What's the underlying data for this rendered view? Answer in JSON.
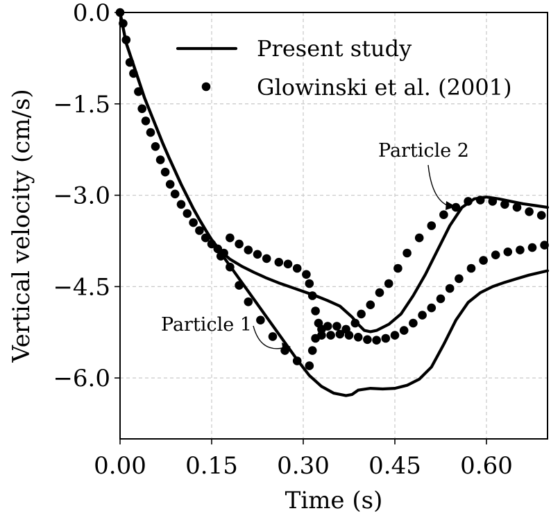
{
  "chart_data": {
    "type": "scatter",
    "xlabel": "Time (s)",
    "ylabel": "Vertical velocity (cm/s)",
    "xlim": [
      0.0,
      0.7
    ],
    "ylim": [
      -7.0,
      0.0
    ],
    "xticks": [
      0.0,
      0.15,
      0.3,
      0.45,
      0.6
    ],
    "xtick_labels": [
      "0.00",
      "0.15",
      "0.30",
      "0.45",
      "0.60"
    ],
    "yticks": [
      0.0,
      -1.5,
      -3.0,
      -4.5,
      -6.0
    ],
    "ytick_labels": [
      "0.0",
      "−1.5",
      "−3.0",
      "−4.5",
      "−6.0"
    ],
    "grid": true,
    "legend_position": "top-right",
    "legend": [
      {
        "label": "Present study",
        "marker": "line"
      },
      {
        "label": "Glowinski et al. (2001)",
        "marker": "dot"
      }
    ],
    "annotations": [
      {
        "text": "Particle 1",
        "x": 0.285,
        "y": -5.55
      },
      {
        "text": "Particle 2",
        "x": 0.555,
        "y": -3.1
      }
    ],
    "series": [
      {
        "legend": "Present study",
        "style": "line",
        "points": [
          [
            0.0,
            0.0
          ],
          [
            0.005,
            -0.25
          ],
          [
            0.01,
            -0.5
          ],
          [
            0.02,
            -0.8
          ],
          [
            0.03,
            -1.1
          ],
          [
            0.04,
            -1.4
          ],
          [
            0.05,
            -1.65
          ],
          [
            0.06,
            -1.9
          ],
          [
            0.07,
            -2.15
          ],
          [
            0.08,
            -2.38
          ],
          [
            0.09,
            -2.6
          ],
          [
            0.1,
            -2.82
          ],
          [
            0.11,
            -3.02
          ],
          [
            0.12,
            -3.22
          ],
          [
            0.13,
            -3.4
          ],
          [
            0.14,
            -3.57
          ],
          [
            0.15,
            -3.73
          ],
          [
            0.165,
            -3.92
          ],
          [
            0.18,
            -4.05
          ],
          [
            0.2,
            -4.17
          ],
          [
            0.22,
            -4.27
          ],
          [
            0.24,
            -4.36
          ],
          [
            0.26,
            -4.44
          ],
          [
            0.28,
            -4.51
          ],
          [
            0.3,
            -4.58
          ],
          [
            0.32,
            -4.65
          ],
          [
            0.34,
            -4.73
          ],
          [
            0.36,
            -4.82
          ],
          [
            0.38,
            -5.0
          ],
          [
            0.39,
            -5.12
          ],
          [
            0.4,
            -5.22
          ],
          [
            0.41,
            -5.24
          ],
          [
            0.42,
            -5.22
          ],
          [
            0.44,
            -5.12
          ],
          [
            0.46,
            -4.95
          ],
          [
            0.48,
            -4.65
          ],
          [
            0.5,
            -4.3
          ],
          [
            0.52,
            -3.9
          ],
          [
            0.54,
            -3.5
          ],
          [
            0.56,
            -3.2
          ],
          [
            0.58,
            -3.06
          ],
          [
            0.6,
            -3.03
          ],
          [
            0.62,
            -3.06
          ],
          [
            0.64,
            -3.1
          ],
          [
            0.66,
            -3.14
          ],
          [
            0.68,
            -3.17
          ],
          [
            0.7,
            -3.2
          ]
        ]
      },
      {
        "legend": "Present study",
        "style": "line",
        "points": [
          [
            0.0,
            0.0
          ],
          [
            0.005,
            -0.25
          ],
          [
            0.01,
            -0.5
          ],
          [
            0.02,
            -0.8
          ],
          [
            0.03,
            -1.1
          ],
          [
            0.04,
            -1.4
          ],
          [
            0.05,
            -1.65
          ],
          [
            0.06,
            -1.9
          ],
          [
            0.07,
            -2.15
          ],
          [
            0.08,
            -2.38
          ],
          [
            0.09,
            -2.6
          ],
          [
            0.1,
            -2.82
          ],
          [
            0.11,
            -3.02
          ],
          [
            0.12,
            -3.22
          ],
          [
            0.13,
            -3.4
          ],
          [
            0.14,
            -3.57
          ],
          [
            0.15,
            -3.73
          ],
          [
            0.17,
            -4.02
          ],
          [
            0.19,
            -4.3
          ],
          [
            0.21,
            -4.58
          ],
          [
            0.23,
            -4.86
          ],
          [
            0.25,
            -5.14
          ],
          [
            0.27,
            -5.42
          ],
          [
            0.29,
            -5.7
          ],
          [
            0.31,
            -5.96
          ],
          [
            0.33,
            -6.14
          ],
          [
            0.35,
            -6.25
          ],
          [
            0.37,
            -6.29
          ],
          [
            0.38,
            -6.27
          ],
          [
            0.39,
            -6.2
          ],
          [
            0.41,
            -6.17
          ],
          [
            0.43,
            -6.18
          ],
          [
            0.45,
            -6.17
          ],
          [
            0.47,
            -6.12
          ],
          [
            0.49,
            -6.02
          ],
          [
            0.51,
            -5.82
          ],
          [
            0.53,
            -5.45
          ],
          [
            0.55,
            -5.05
          ],
          [
            0.57,
            -4.76
          ],
          [
            0.59,
            -4.6
          ],
          [
            0.61,
            -4.5
          ],
          [
            0.63,
            -4.43
          ],
          [
            0.65,
            -4.37
          ],
          [
            0.67,
            -4.31
          ],
          [
            0.7,
            -4.24
          ]
        ]
      },
      {
        "legend": "Glowinski et al. (2001)",
        "style": "dots",
        "points": [
          [
            0.0,
            0.0
          ],
          [
            0.005,
            -0.18
          ],
          [
            0.01,
            -0.45
          ],
          [
            0.016,
            -0.82
          ],
          [
            0.022,
            -1.0
          ],
          [
            0.03,
            -1.3
          ],
          [
            0.036,
            -1.58
          ],
          [
            0.042,
            -1.78
          ],
          [
            0.05,
            -1.97
          ],
          [
            0.058,
            -2.2
          ],
          [
            0.066,
            -2.42
          ],
          [
            0.074,
            -2.62
          ],
          [
            0.082,
            -2.82
          ],
          [
            0.09,
            -2.98
          ],
          [
            0.1,
            -3.15
          ],
          [
            0.11,
            -3.3
          ],
          [
            0.12,
            -3.45
          ],
          [
            0.13,
            -3.58
          ],
          [
            0.14,
            -3.7
          ],
          [
            0.15,
            -3.8
          ],
          [
            0.16,
            -3.88
          ],
          [
            0.17,
            -3.95
          ],
          [
            0.18,
            -3.7
          ],
          [
            0.195,
            -3.8
          ],
          [
            0.21,
            -3.9
          ],
          [
            0.225,
            -3.97
          ],
          [
            0.24,
            -4.04
          ],
          [
            0.26,
            -4.1
          ],
          [
            0.275,
            -4.13
          ],
          [
            0.29,
            -4.2
          ],
          [
            0.305,
            -4.3
          ],
          [
            0.31,
            -4.45
          ],
          [
            0.315,
            -4.65
          ],
          [
            0.32,
            -4.9
          ],
          [
            0.325,
            -5.1
          ],
          [
            0.33,
            -5.2
          ],
          [
            0.34,
            -5.15
          ],
          [
            0.355,
            -5.15
          ],
          [
            0.37,
            -5.2
          ],
          [
            0.385,
            -5.1
          ],
          [
            0.395,
            -4.95
          ],
          [
            0.41,
            -4.8
          ],
          [
            0.425,
            -4.6
          ],
          [
            0.44,
            -4.45
          ],
          [
            0.455,
            -4.2
          ],
          [
            0.47,
            -3.95
          ],
          [
            0.49,
            -3.7
          ],
          [
            0.51,
            -3.5
          ],
          [
            0.53,
            -3.32
          ],
          [
            0.55,
            -3.2
          ],
          [
            0.57,
            -3.1
          ],
          [
            0.59,
            -3.08
          ],
          [
            0.61,
            -3.1
          ],
          [
            0.63,
            -3.15
          ],
          [
            0.65,
            -3.2
          ],
          [
            0.67,
            -3.27
          ],
          [
            0.69,
            -3.33
          ],
          [
            0.165,
            -4.0
          ],
          [
            0.18,
            -4.18
          ],
          [
            0.195,
            -4.48
          ],
          [
            0.21,
            -4.75
          ],
          [
            0.23,
            -5.05
          ],
          [
            0.25,
            -5.32
          ],
          [
            0.27,
            -5.55
          ],
          [
            0.29,
            -5.72
          ],
          [
            0.31,
            -5.8
          ],
          [
            0.315,
            -5.55
          ],
          [
            0.32,
            -5.35
          ],
          [
            0.33,
            -5.3
          ],
          [
            0.345,
            -5.3
          ],
          [
            0.36,
            -5.28
          ],
          [
            0.375,
            -5.3
          ],
          [
            0.39,
            -5.33
          ],
          [
            0.405,
            -5.37
          ],
          [
            0.42,
            -5.38
          ],
          [
            0.435,
            -5.35
          ],
          [
            0.45,
            -5.3
          ],
          [
            0.465,
            -5.22
          ],
          [
            0.48,
            -5.1
          ],
          [
            0.495,
            -4.97
          ],
          [
            0.51,
            -4.85
          ],
          [
            0.525,
            -4.7
          ],
          [
            0.54,
            -4.53
          ],
          [
            0.555,
            -4.37
          ],
          [
            0.575,
            -4.2
          ],
          [
            0.595,
            -4.07
          ],
          [
            0.615,
            -3.98
          ],
          [
            0.635,
            -3.93
          ],
          [
            0.655,
            -3.9
          ],
          [
            0.675,
            -3.86
          ],
          [
            0.695,
            -3.82
          ]
        ]
      }
    ]
  }
}
